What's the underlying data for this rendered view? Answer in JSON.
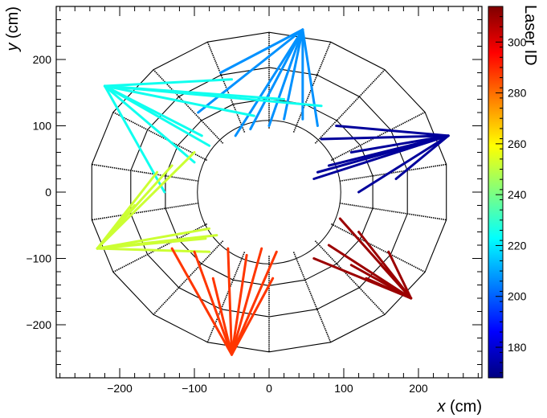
{
  "chart_data": {
    "type": "scatter",
    "title": "",
    "xlabel_var": "x",
    "xlabel_unit": "(cm)",
    "ylabel_var": "y",
    "ylabel_unit": "(cm)",
    "xlim": [
      -285,
      285
    ],
    "ylim": [
      -280,
      280
    ],
    "x_ticks": [
      -200,
      -100,
      0,
      100,
      200
    ],
    "y_ticks": [
      -200,
      -100,
      0,
      100,
      200
    ],
    "x_tick_labels": [
      "−200",
      "−100",
      "0",
      "100",
      "200"
    ],
    "y_tick_labels": [
      "−200",
      "−100",
      "0",
      "100",
      "200"
    ],
    "colorbar": {
      "label": "Laser ID",
      "range": [
        168,
        314
      ],
      "ticks": [
        180,
        200,
        220,
        240,
        260,
        280,
        300
      ],
      "tick_labels": [
        "180",
        "200",
        "220",
        "240",
        "260",
        "280",
        "300"
      ],
      "colormap": "jet"
    },
    "detector": {
      "sectors": 18,
      "ring_radii": [
        96,
        141,
        188,
        241
      ]
    },
    "series": [
      {
        "id": 207,
        "origin": [
          45,
          245
        ],
        "ends": [
          [
            -45,
            85
          ],
          [
            -25,
            95
          ],
          [
            0,
            100
          ],
          [
            20,
            110
          ],
          [
            45,
            110
          ],
          [
            65,
            100
          ],
          [
            -65,
            180
          ],
          [
            -95,
            120
          ]
        ]
      },
      {
        "id": 225,
        "origin": [
          -220,
          160
        ],
        "ends": [
          [
            -100,
            45
          ],
          [
            -90,
            85
          ],
          [
            -140,
            0
          ],
          [
            -80,
            70
          ],
          [
            -50,
            170
          ],
          [
            20,
            140
          ],
          [
            70,
            130
          ],
          [
            -20,
            115
          ]
        ]
      },
      {
        "id": 252,
        "origin": [
          -230,
          -85
        ],
        "ends": [
          [
            -130,
            40
          ],
          [
            -100,
            60
          ],
          [
            -80,
            -55
          ],
          [
            -70,
            -65
          ],
          [
            -85,
            -70
          ],
          [
            -80,
            -90
          ],
          [
            -180,
            -20
          ],
          [
            -150,
            30
          ]
        ]
      },
      {
        "id": 288,
        "origin": [
          -50,
          -245
        ],
        "ends": [
          [
            -130,
            -85
          ],
          [
            -100,
            -90
          ],
          [
            -10,
            -85
          ],
          [
            -30,
            -95
          ],
          [
            5,
            -130
          ],
          [
            10,
            -90
          ],
          [
            -55,
            -85
          ],
          [
            -75,
            -130
          ]
        ]
      },
      {
        "id": 310,
        "origin": [
          190,
          -160
        ],
        "ends": [
          [
            95,
            -40
          ],
          [
            120,
            -60
          ],
          [
            160,
            -90
          ],
          [
            110,
            -110
          ],
          [
            150,
            -110
          ],
          [
            80,
            -80
          ],
          [
            60,
            -100
          ],
          [
            130,
            -130
          ]
        ]
      },
      {
        "id": 172,
        "origin": [
          240,
          85
        ],
        "ends": [
          [
            65,
            30
          ],
          [
            80,
            40
          ],
          [
            70,
            80
          ],
          [
            120,
            0
          ],
          [
            90,
            100
          ],
          [
            170,
            20
          ],
          [
            60,
            20
          ],
          [
            110,
            60
          ]
        ]
      }
    ]
  }
}
